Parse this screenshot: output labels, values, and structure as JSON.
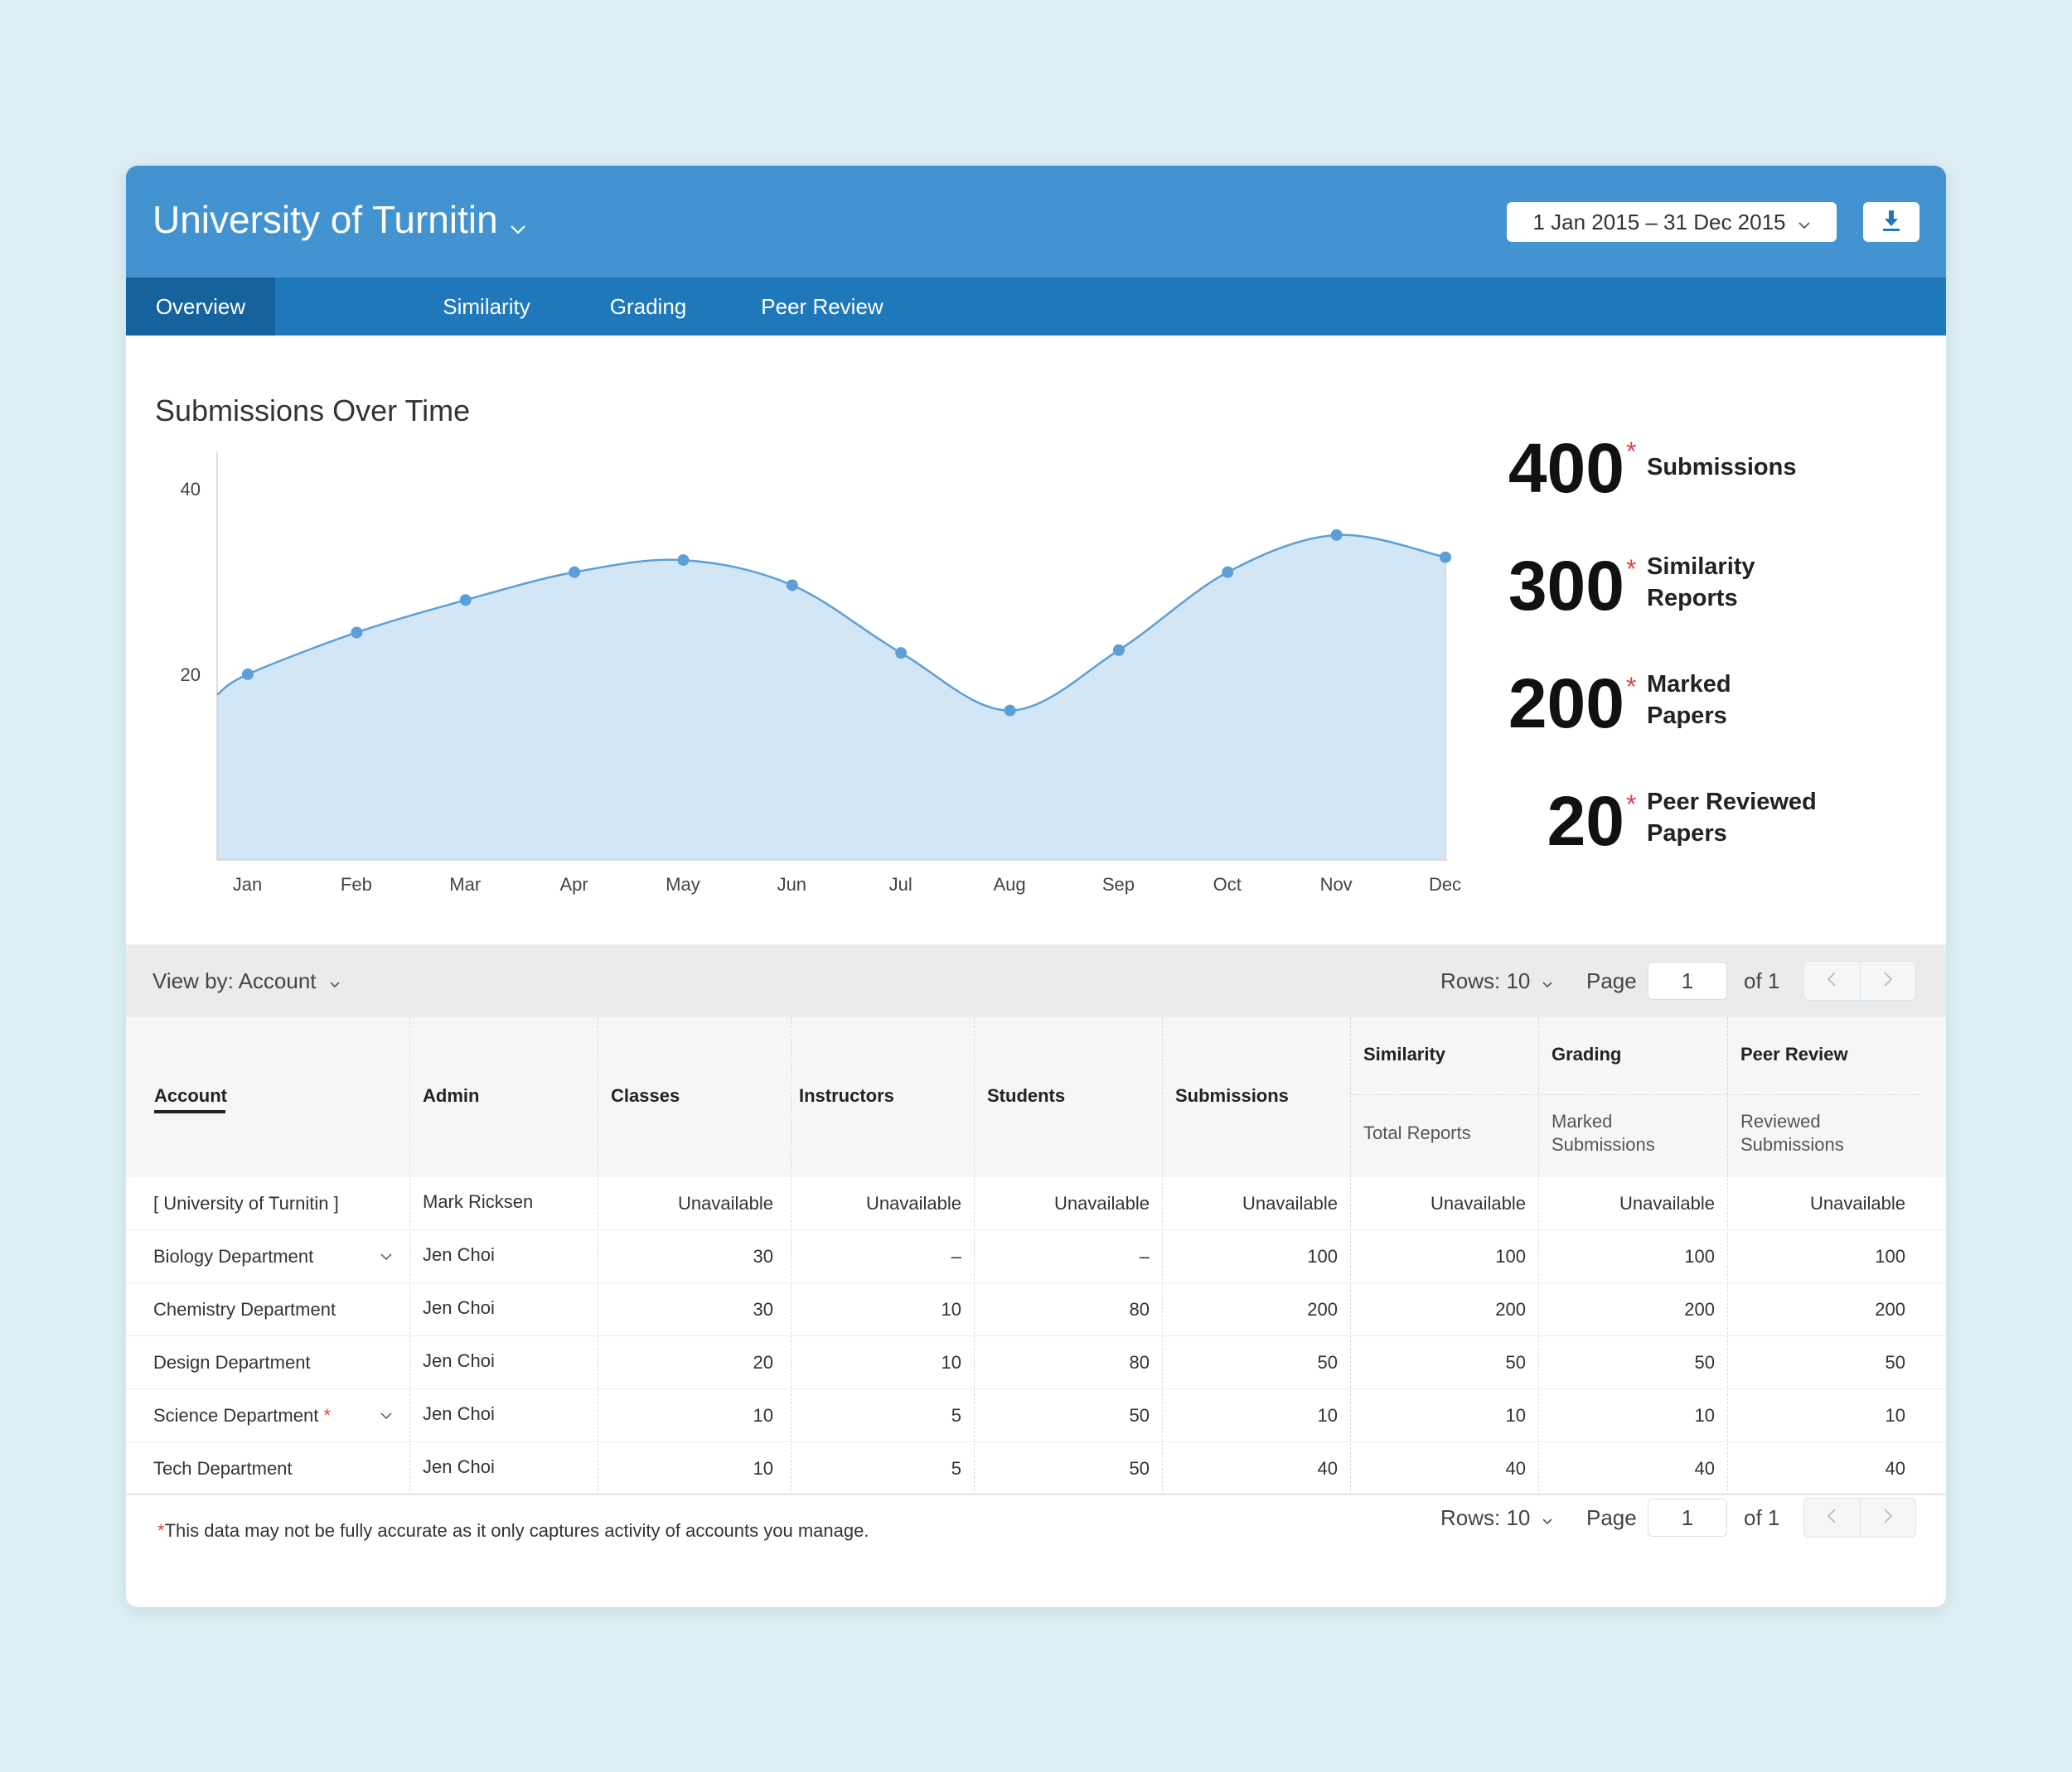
{
  "header": {
    "org_title": "University of Turnitin",
    "date_range": "1 Jan 2015 – 31 Dec 2015",
    "chevron_icon": "chevron-down-icon",
    "download_icon": "download-icon",
    "colors": {
      "header_bg": "#4293cf",
      "tabs_bg": "#1f78ba",
      "tab_active_bg": "#16629c"
    }
  },
  "tabs": [
    {
      "label": "Overview",
      "active": true
    },
    {
      "label": "Similarity",
      "active": false
    },
    {
      "label": "Grading",
      "active": false
    },
    {
      "label": "Peer Review",
      "active": false
    }
  ],
  "chart_data": {
    "type": "area",
    "title": "Submissions Over Time",
    "categories": [
      "Jan",
      "Feb",
      "Mar",
      "Apr",
      "May",
      "Jun",
      "Jul",
      "Aug",
      "Sep",
      "Oct",
      "Nov",
      "Dec"
    ],
    "series": [
      {
        "values": [
          20,
          24.5,
          28,
          31,
          32.3,
          29.6,
          22.3,
          16.1,
          22.6,
          31,
          35,
          32.6
        ]
      }
    ],
    "y_ticks": [
      20,
      40
    ],
    "ylim": [
      0,
      44
    ],
    "grid": false,
    "colors": {
      "line": "#5b9fd6",
      "fill": "#d3e6f5",
      "point": "#5b9fd6"
    }
  },
  "stats": [
    {
      "value": "400",
      "asterisk": "*",
      "label_lines": [
        "Submissions"
      ]
    },
    {
      "value": "300",
      "asterisk": "*",
      "label_lines": [
        "Similarity",
        "Reports"
      ]
    },
    {
      "value": "200",
      "asterisk": "*",
      "label_lines": [
        "Marked",
        "Papers"
      ]
    },
    {
      "value": "20",
      "asterisk": "*",
      "label_lines": [
        "Peer Reviewed",
        "Papers"
      ]
    }
  ],
  "toolbar": {
    "view_by": "View by: Account",
    "rows": "Rows: 10",
    "page_label": "Page",
    "page_value": "1",
    "of_label": "of 1",
    "prev_icon": "chevron-left-icon",
    "next_icon": "chevron-right-icon"
  },
  "table": {
    "headers": {
      "account": "Account",
      "admin": "Admin",
      "classes": "Classes",
      "instructors": "Instructors",
      "students": "Students",
      "submissions": "Submissions",
      "similarity": "Similarity",
      "grading": "Grading",
      "peer_review": "Peer Review",
      "similarity_sub": "Total Reports",
      "grading_sub": "Marked Submissions",
      "peer_review_sub": "Reviewed Submissions"
    },
    "rows": [
      {
        "account": "[ University of Turnitin ]",
        "asterisk": "",
        "expandable": false,
        "admin": "Mark Ricksen",
        "classes": "Unavailable",
        "instructors": "Unavailable",
        "students": "Unavailable",
        "submissions": "Unavailable",
        "similarity": "Unavailable",
        "grading": "Unavailable",
        "peer_review": "Unavailable"
      },
      {
        "account": "Biology Department",
        "asterisk": "",
        "expandable": true,
        "admin": "Jen Choi",
        "classes": "30",
        "instructors": "–",
        "students": "–",
        "submissions": "100",
        "similarity": "100",
        "grading": "100",
        "peer_review": "100"
      },
      {
        "account": "Chemistry Department",
        "asterisk": "",
        "expandable": false,
        "admin": "Jen Choi",
        "classes": "30",
        "instructors": "10",
        "students": "80",
        "submissions": "200",
        "similarity": "200",
        "grading": "200",
        "peer_review": "200"
      },
      {
        "account": "Design Department",
        "asterisk": "",
        "expandable": false,
        "admin": "Jen Choi",
        "classes": "20",
        "instructors": "10",
        "students": "80",
        "submissions": "50",
        "similarity": "50",
        "grading": "50",
        "peer_review": "50"
      },
      {
        "account": "Science Department",
        "asterisk": "*",
        "expandable": true,
        "admin": "Jen Choi",
        "classes": "10",
        "instructors": "5",
        "students": "50",
        "submissions": "10",
        "similarity": "10",
        "grading": "10",
        "peer_review": "10"
      },
      {
        "account": "Tech Department",
        "asterisk": "",
        "expandable": false,
        "admin": "Jen Choi",
        "classes": "10",
        "instructors": "5",
        "students": "50",
        "submissions": "40",
        "similarity": "40",
        "grading": "40",
        "peer_review": "40"
      }
    ]
  },
  "footer": {
    "asterisk": "*",
    "note": "This data may not be fully accurate as it only captures activity of accounts you manage."
  }
}
